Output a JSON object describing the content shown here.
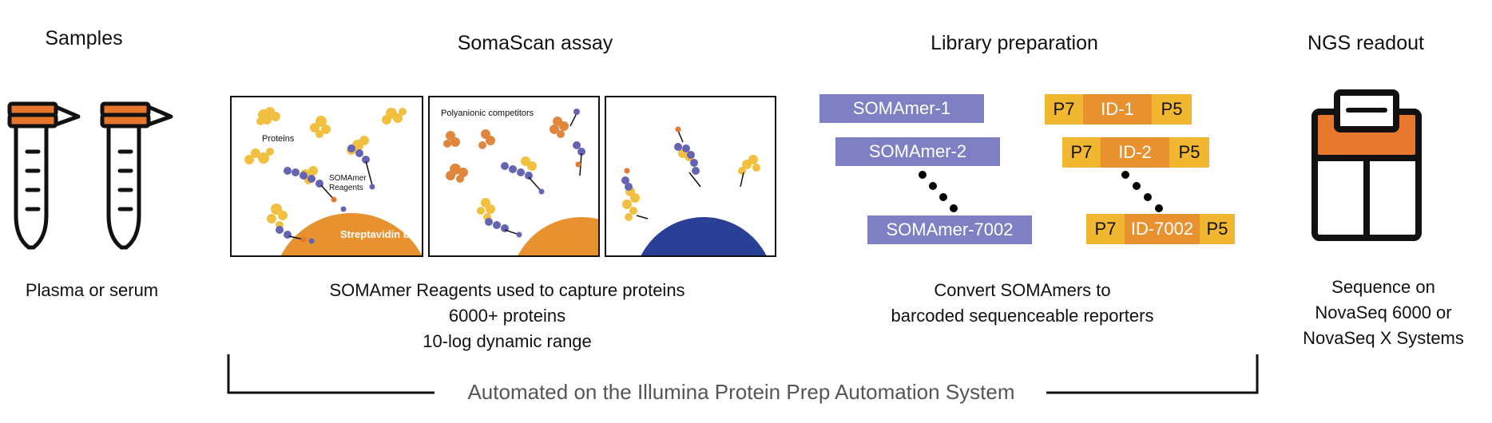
{
  "sections": {
    "samples": {
      "title": "Samples",
      "caption": "Plasma or serum"
    },
    "somascan": {
      "title": "SomaScan assay",
      "panel1": {
        "proteins": "Proteins",
        "somamer": "SOMAmer\nReagents",
        "bead": "Streptavidin bead"
      },
      "panel2": {
        "competitors": "Polyanionic competitors"
      },
      "caption_lines": [
        "SOMAmer Reagents used to capture proteins",
        "6000+ proteins",
        "10-log dynamic range"
      ]
    },
    "library": {
      "title": "Library preparation",
      "somamers": [
        "SOMAmer-1",
        "SOMAmer-2",
        "SOMAmer-7002"
      ],
      "barcodes": [
        {
          "p7": "P7",
          "id": "ID-1",
          "p5": "P5"
        },
        {
          "p7": "P7",
          "id": "ID-2",
          "p5": "P5"
        },
        {
          "p7": "P7",
          "id": "ID-7002",
          "p5": "P5"
        }
      ],
      "caption_lines": [
        "Convert SOMAmers to",
        "barcoded sequenceable reporters"
      ]
    },
    "ngs": {
      "title": "NGS readout",
      "caption_lines": [
        "Sequence on",
        "NovaSeq 6000 or",
        "NovaSeq X Systems"
      ]
    }
  },
  "bottom_label": "Automated on the Illumina Protein Prep Automation System",
  "colors": {
    "tube_orange": "#e8772e",
    "bead_orange": "#e8912f",
    "bead_blue": "#2a3f96",
    "somamer_purple": "#7f7fc4",
    "protein_yellow": "#f2c040",
    "protein_orange": "#e0873d",
    "barcode_p": "#f2b731",
    "barcode_id": "#e8912f"
  }
}
